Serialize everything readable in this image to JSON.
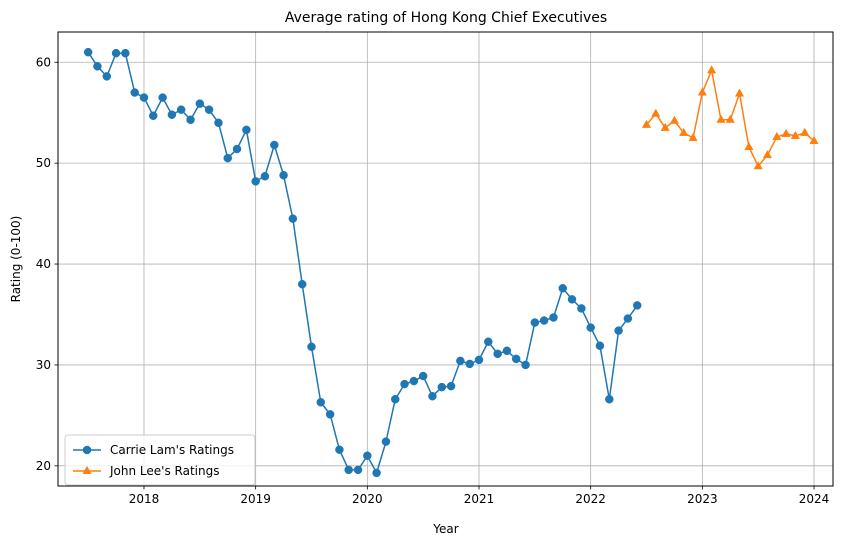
{
  "chart_data": {
    "type": "line",
    "title": "Average rating of Hong Kong Chief Executives",
    "xlabel": "Year",
    "ylabel": "Rating (0-100)",
    "xlim": [
      2017.23,
      2024.17
    ],
    "ylim": [
      18.0,
      63.0
    ],
    "x_ticks": [
      2018,
      2019,
      2020,
      2021,
      2022,
      2023,
      2024
    ],
    "x_tick_labels": [
      "2018",
      "2019",
      "2020",
      "2021",
      "2022",
      "2023",
      "2024"
    ],
    "y_ticks": [
      20,
      30,
      40,
      50,
      60
    ],
    "y_tick_labels": [
      "20",
      "30",
      "40",
      "50",
      "60"
    ],
    "grid": true,
    "legend_position": "lower-left",
    "series": [
      {
        "name": "Carrie Lam's Ratings",
        "color": "#1f77b4",
        "marker": "circle",
        "points": [
          [
            2017.5,
            61.0
          ],
          [
            2017.583,
            59.6
          ],
          [
            2017.667,
            58.6
          ],
          [
            2017.75,
            60.9
          ],
          [
            2017.833,
            60.9
          ],
          [
            2017.917,
            57.0
          ],
          [
            2018.0,
            56.5
          ],
          [
            2018.083,
            54.7
          ],
          [
            2018.167,
            56.5
          ],
          [
            2018.25,
            54.8
          ],
          [
            2018.333,
            55.3
          ],
          [
            2018.417,
            54.3
          ],
          [
            2018.5,
            55.9
          ],
          [
            2018.583,
            55.3
          ],
          [
            2018.667,
            54.0
          ],
          [
            2018.75,
            50.5
          ],
          [
            2018.833,
            51.4
          ],
          [
            2018.917,
            53.3
          ],
          [
            2019.0,
            48.2
          ],
          [
            2019.083,
            48.7
          ],
          [
            2019.167,
            51.8
          ],
          [
            2019.25,
            48.8
          ],
          [
            2019.333,
            44.5
          ],
          [
            2019.417,
            38.0
          ],
          [
            2019.5,
            31.8
          ],
          [
            2019.583,
            26.3
          ],
          [
            2019.667,
            25.1
          ],
          [
            2019.75,
            21.6
          ],
          [
            2019.833,
            19.6
          ],
          [
            2019.917,
            19.6
          ],
          [
            2020.0,
            21.0
          ],
          [
            2020.083,
            19.3
          ],
          [
            2020.167,
            22.4
          ],
          [
            2020.25,
            26.6
          ],
          [
            2020.333,
            28.1
          ],
          [
            2020.417,
            28.4
          ],
          [
            2020.5,
            28.9
          ],
          [
            2020.583,
            26.9
          ],
          [
            2020.667,
            27.8
          ],
          [
            2020.75,
            27.9
          ],
          [
            2020.833,
            30.4
          ],
          [
            2020.917,
            30.1
          ],
          [
            2021.0,
            30.5
          ],
          [
            2021.083,
            32.3
          ],
          [
            2021.167,
            31.1
          ],
          [
            2021.25,
            31.4
          ],
          [
            2021.333,
            30.6
          ],
          [
            2021.417,
            30.0
          ],
          [
            2021.5,
            34.2
          ],
          [
            2021.583,
            34.4
          ],
          [
            2021.667,
            34.7
          ],
          [
            2021.75,
            37.6
          ],
          [
            2021.833,
            36.5
          ],
          [
            2021.917,
            35.6
          ],
          [
            2022.0,
            33.7
          ],
          [
            2022.083,
            31.9
          ],
          [
            2022.167,
            26.6
          ],
          [
            2022.25,
            33.4
          ],
          [
            2022.333,
            34.6
          ],
          [
            2022.417,
            35.9
          ]
        ]
      },
      {
        "name": "John Lee's Ratings",
        "color": "#ff7f0e",
        "marker": "triangle-up",
        "points": [
          [
            2022.5,
            53.8
          ],
          [
            2022.583,
            54.9
          ],
          [
            2022.667,
            53.5
          ],
          [
            2022.75,
            54.2
          ],
          [
            2022.833,
            53.0
          ],
          [
            2022.917,
            52.5
          ],
          [
            2023.0,
            57.0
          ],
          [
            2023.083,
            59.2
          ],
          [
            2023.167,
            54.3
          ],
          [
            2023.25,
            54.3
          ],
          [
            2023.333,
            56.9
          ],
          [
            2023.417,
            51.6
          ],
          [
            2023.5,
            49.7
          ],
          [
            2023.583,
            50.8
          ],
          [
            2023.667,
            52.6
          ],
          [
            2023.75,
            52.9
          ],
          [
            2023.833,
            52.7
          ],
          [
            2023.917,
            53.0
          ],
          [
            2024.0,
            52.2
          ]
        ]
      }
    ]
  }
}
